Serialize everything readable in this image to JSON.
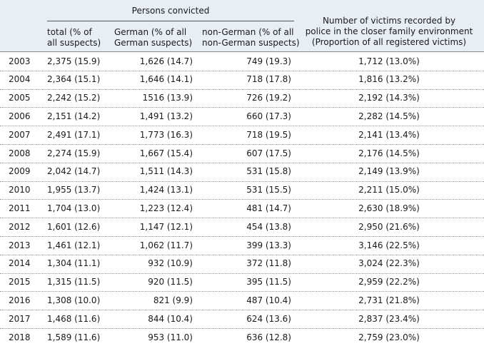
{
  "table": {
    "group_header": "Persons convicted",
    "columns": [
      {
        "lines": [
          "total (% of",
          "all suspects)"
        ]
      },
      {
        "lines": [
          "German (% of all",
          "German suspects)"
        ]
      },
      {
        "lines": [
          "non-German (% of all",
          "non-German suspects)"
        ]
      },
      {
        "lines": [
          "Number of victims recorded by",
          "police  in the closer family environment",
          "(Proportion of all registered victims)"
        ]
      }
    ],
    "rows": [
      [
        "2003",
        "2,375 (15.9)",
        "1,626 (14.7)",
        "749 (19.3)",
        "1,712 (13.0%)"
      ],
      [
        "2004",
        "2,364 (15.1)",
        "1,646 (14.1)",
        "718 (17.8)",
        "1,816 (13.2%)"
      ],
      [
        "2005",
        "2,242 (15.2)",
        "1516 (13.9)",
        "726 (19.2)",
        "2,192 (14.3%)"
      ],
      [
        "2006",
        "2,151 (14.2)",
        "1,491 (13.2)",
        "660 (17.3)",
        "2,282 (14.5%)"
      ],
      [
        "2007",
        "2,491 (17.1)",
        "1,773 (16.3)",
        "718 (19.5)",
        "2,141 (13.4%)"
      ],
      [
        "2008",
        "2,274 (15.9)",
        "1,667 (15.4)",
        "607 (17.5)",
        "2,176 (14.5%)"
      ],
      [
        "2009",
        "2,042 (14.7)",
        "1,511 (14.3)",
        "531 (15.8)",
        "2,149 (13.9%)"
      ],
      [
        "2010",
        "1,955 (13.7)",
        "1,424 (13.1)",
        "531 (15.5)",
        "2,211 (15.0%)"
      ],
      [
        "2011",
        "1,704 (13.0)",
        "1,223 (12.4)",
        "481 (14.7)",
        "2,630 (18.9%)"
      ],
      [
        "2012",
        "1,601 (12.6)",
        "1,147 (12.1)",
        "454 (13.8)",
        "2,950 (21.6%)"
      ],
      [
        "2013",
        "1,461 (12.1)",
        "1,062 (11.7)",
        "399 (13.3)",
        "3,146 (22.5%)"
      ],
      [
        "2014",
        "1,304 (11.1)",
        "932 (10.9)",
        "372 (11.8)",
        "3,024 (22.3%)"
      ],
      [
        "2015",
        "1,315 (11.5)",
        "920 (11.5)",
        "395 (11.5)",
        "2,959 (22.2%)"
      ],
      [
        "2016",
        "1,308 (10.0)",
        "821 (9.9)",
        "487 (10.4)",
        "2,731 (21.8%)"
      ],
      [
        "2017",
        "1,468 (11.6)",
        "844 (10.4)",
        "624 (13.6)",
        "2,837 (23.4%)"
      ],
      [
        "2018",
        "1,589 (11.6)",
        "953 (11.0)",
        "636 (12.8)",
        "2,759 (23.0%)"
      ]
    ]
  }
}
